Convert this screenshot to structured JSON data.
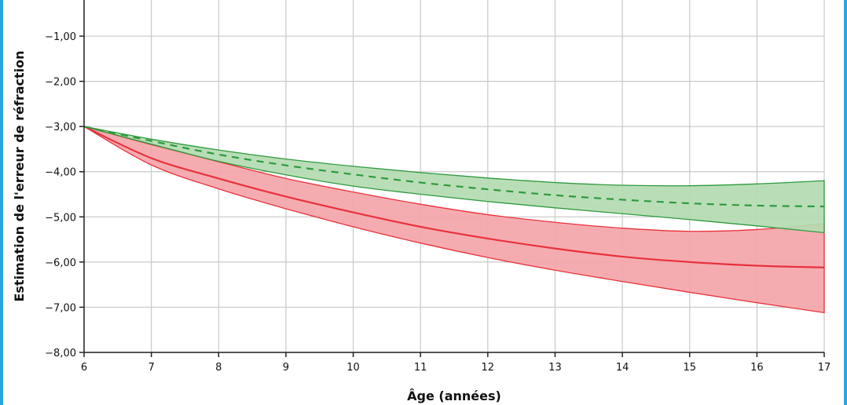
{
  "chart_data": {
    "type": "area",
    "title": "",
    "xlabel": "Âge (années)",
    "ylabel": "Estimation de l'erreur de réfraction",
    "xlim": [
      6,
      17
    ],
    "ylim": [
      -8,
      -0.2
    ],
    "grid": true,
    "legend": "none",
    "x_ticks": [
      6,
      7,
      8,
      9,
      10,
      11,
      12,
      13,
      14,
      15,
      16,
      17
    ],
    "x_tick_labels": [
      "6",
      "7",
      "8",
      "9",
      "10",
      "11",
      "12",
      "13",
      "14",
      "15",
      "16",
      "17"
    ],
    "y_ticks": [
      -1,
      -2,
      -3,
      -4,
      -5,
      -6,
      -7,
      -8
    ],
    "y_tick_labels": [
      "−1,00",
      "−2,00",
      "−3,00",
      "−4,00",
      "−5,00",
      "−6,00",
      "−7,00",
      "−8,00"
    ],
    "x": [
      6,
      7,
      8,
      9,
      10,
      11,
      12,
      13,
      14,
      15,
      16,
      17
    ],
    "series": [
      {
        "color": "#e8323c",
        "fill": "#f4a5aa",
        "style": "solid",
        "values": [
          -3.0,
          -3.7,
          -4.15,
          -4.55,
          -4.9,
          -5.22,
          -5.48,
          -5.7,
          -5.88,
          -6.0,
          -6.08,
          -6.12
        ],
        "upper": [
          -3.0,
          -3.4,
          -3.78,
          -4.15,
          -4.45,
          -4.72,
          -4.95,
          -5.12,
          -5.25,
          -5.32,
          -5.28,
          -5.15
        ],
        "lower": [
          -3.0,
          -3.85,
          -4.38,
          -4.82,
          -5.22,
          -5.58,
          -5.9,
          -6.18,
          -6.43,
          -6.67,
          -6.9,
          -7.12
        ]
      },
      {
        "color": "#2e9a3e",
        "fill": "#b3dbb1",
        "style": "dashed",
        "values": [
          -3.0,
          -3.32,
          -3.62,
          -3.86,
          -4.06,
          -4.24,
          -4.39,
          -4.52,
          -4.62,
          -4.7,
          -4.75,
          -4.77
        ],
        "upper": [
          -3.0,
          -3.28,
          -3.52,
          -3.72,
          -3.88,
          -4.02,
          -4.14,
          -4.24,
          -4.3,
          -4.31,
          -4.27,
          -4.2
        ],
        "lower": [
          -3.0,
          -3.39,
          -3.77,
          -4.07,
          -4.32,
          -4.5,
          -4.66,
          -4.8,
          -4.93,
          -5.06,
          -5.2,
          -5.35
        ]
      }
    ]
  }
}
